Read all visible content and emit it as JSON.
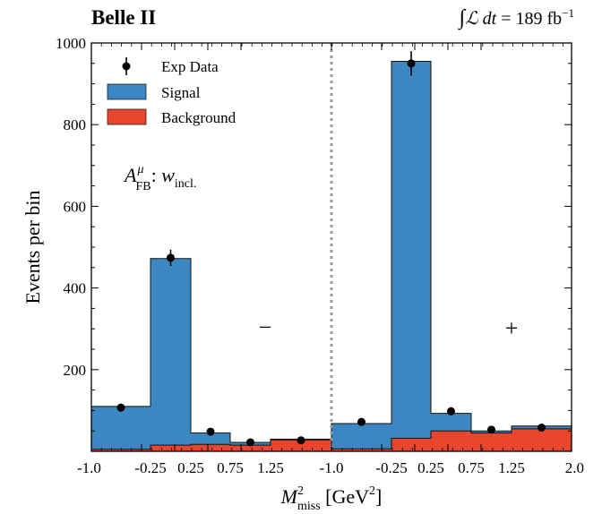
{
  "chart_data": {
    "type": "bar",
    "experiment": "Belle II",
    "luminosity": "∫ℒ dt = 189 fb⁻¹",
    "annotation": "A^μ_FB: w_incl.",
    "region_labels": [
      "−",
      "+"
    ],
    "xlabel": "M²miss [GeV²]",
    "ylabel": "Events per bin",
    "ylim": [
      0,
      1000
    ],
    "yticks": [
      200,
      400,
      600,
      800,
      1000
    ],
    "xtick_labels": [
      "-1.0",
      "-0.25",
      "0.25",
      "0.75",
      "1.25",
      "-1.0",
      "-0.25",
      "0.25",
      "0.75",
      "1.25",
      "2.0"
    ],
    "divider": "dotted grey vertical line between the − and + halves",
    "grid": false,
    "legend_position": "top-left",
    "legend": [
      {
        "label": "Exp Data",
        "kind": "point"
      },
      {
        "label": "Signal",
        "kind": "bar",
        "color": "#3a87c2"
      },
      {
        "label": "Background",
        "kind": "bar",
        "color": "#e8452f"
      }
    ],
    "bins": [
      "−: -1.0–-0.25",
      "−: -0.25–0.25",
      "−: 0.25–0.75",
      "−: 0.75–1.25",
      "−: 1.25–2.0",
      "+: -1.0–-0.25",
      "+: -0.25–0.25",
      "+: 0.25–0.75",
      "+: 0.75–1.25",
      "+: 1.25–2.0"
    ],
    "series": [
      {
        "name": "Signal",
        "stack_total": [
          110,
          472,
          45,
          22,
          30,
          68,
          955,
          93,
          50,
          62
        ],
        "color": "#3a87c2"
      },
      {
        "name": "Background",
        "values": [
          5,
          15,
          17,
          15,
          28,
          6,
          32,
          50,
          45,
          55
        ],
        "color": "#e8452f"
      },
      {
        "name": "Exp Data",
        "values": [
          107,
          474,
          48,
          22,
          27,
          72,
          950,
          98,
          53,
          58
        ],
        "errors": [
          10,
          20,
          7,
          5,
          5,
          8,
          30,
          10,
          7,
          7
        ]
      }
    ]
  },
  "colors": {
    "signal": "#3a87c2",
    "background": "#e8452f",
    "data": "#000000",
    "divider": "#999999"
  }
}
